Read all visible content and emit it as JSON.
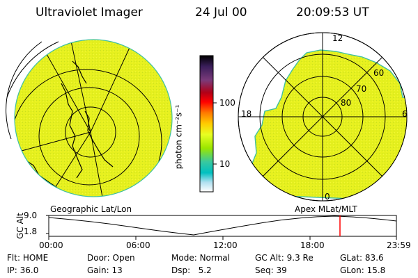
{
  "header": {
    "instrument": "Ultraviolet Imager",
    "date": "24 Jul 00",
    "time": "20:09:53 UT"
  },
  "colorbar": {
    "unit_label": "photon cm⁻²s⁻¹",
    "ticks": [
      "100",
      "10"
    ],
    "colors": [
      "#000000",
      "#3a1e5a",
      "#7a3a7a",
      "#b00018",
      "#ff0000",
      "#ff7a00",
      "#ffcc00",
      "#e8ff22",
      "#9ae600",
      "#38c8a0",
      "#00c0c0",
      "#b0e0f0",
      "#ffffff"
    ]
  },
  "left_map": {
    "label": "Geographic Lat/Lon",
    "fill_color": "#e6f01e"
  },
  "right_map": {
    "label": "Apex MLat/MLT",
    "mlt_labels": {
      "top": "12",
      "left": "18",
      "right": "6",
      "bottom": "0"
    },
    "lat_labels": [
      "60",
      "70",
      "80"
    ],
    "fill_color": "#e6f01e"
  },
  "timeline": {
    "y_axis_title": "GC Alt",
    "y_ticks": [
      "9.0",
      "1.8"
    ],
    "x_ticks": [
      "00:00",
      "06:00",
      "12:00",
      "18:00",
      "23:59"
    ],
    "current_time_marker_color": "#ff0000"
  },
  "status": {
    "row1": [
      {
        "key": "Flt:",
        "value": "HOME"
      },
      {
        "key": "Door:",
        "value": "Open"
      },
      {
        "key": "Mode:",
        "value": "Normal"
      },
      {
        "key": "GC Alt:",
        "value": "9.3 Re"
      },
      {
        "key": "GLat:",
        "value": "83.6"
      }
    ],
    "row2": [
      {
        "key": "IP:",
        "value": "36.0"
      },
      {
        "key": "Gain:",
        "value": "13"
      },
      {
        "key": "Dsp:",
        "value": "5.2"
      },
      {
        "key": "Seq:",
        "value": "39"
      },
      {
        "key": "GLon:",
        "value": "15.8"
      }
    ]
  }
}
